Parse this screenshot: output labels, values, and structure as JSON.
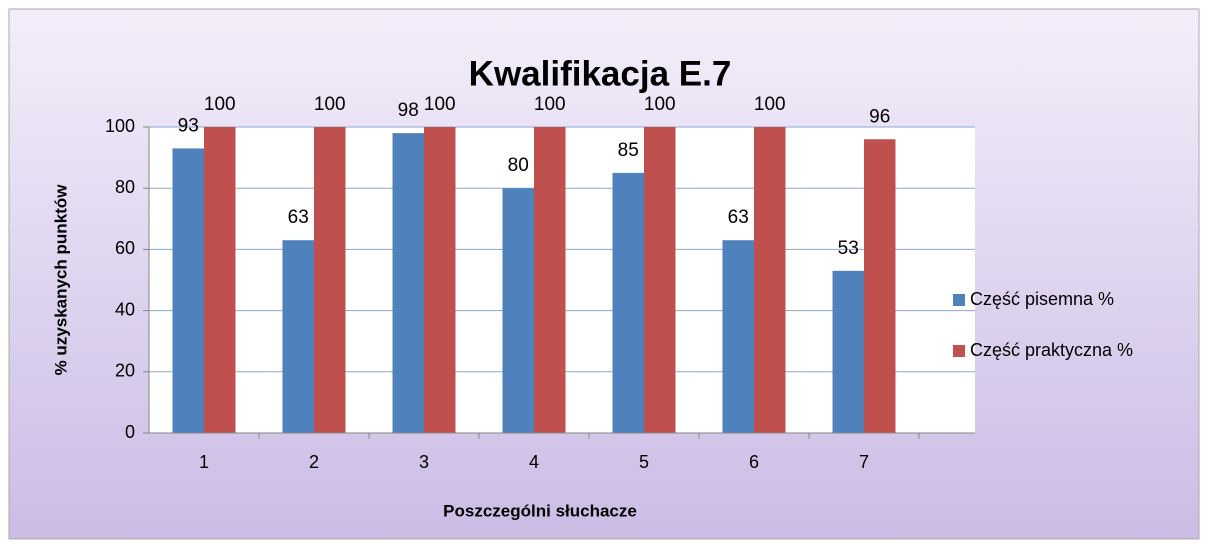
{
  "chart_data": {
    "type": "bar",
    "title": "Kwalifikacja E.7",
    "x_label": "Poszczególni słuchacze",
    "y_label": "% uzyskanych punktów",
    "categories": [
      "1",
      "2",
      "3",
      "4",
      "5",
      "6",
      "7"
    ],
    "series": [
      {
        "name": "Część pisemna %",
        "color": "#4f81bd",
        "values": [
          93,
          63,
          98,
          80,
          85,
          63,
          53
        ]
      },
      {
        "name": "Część praktyczna %",
        "color": "#c0504d",
        "values": [
          100,
          100,
          100,
          100,
          100,
          100,
          96
        ]
      }
    ],
    "ylim": [
      0,
      100
    ],
    "yticks": [
      0,
      20,
      40,
      60,
      80,
      100
    ],
    "grid": true,
    "legend": "right"
  }
}
